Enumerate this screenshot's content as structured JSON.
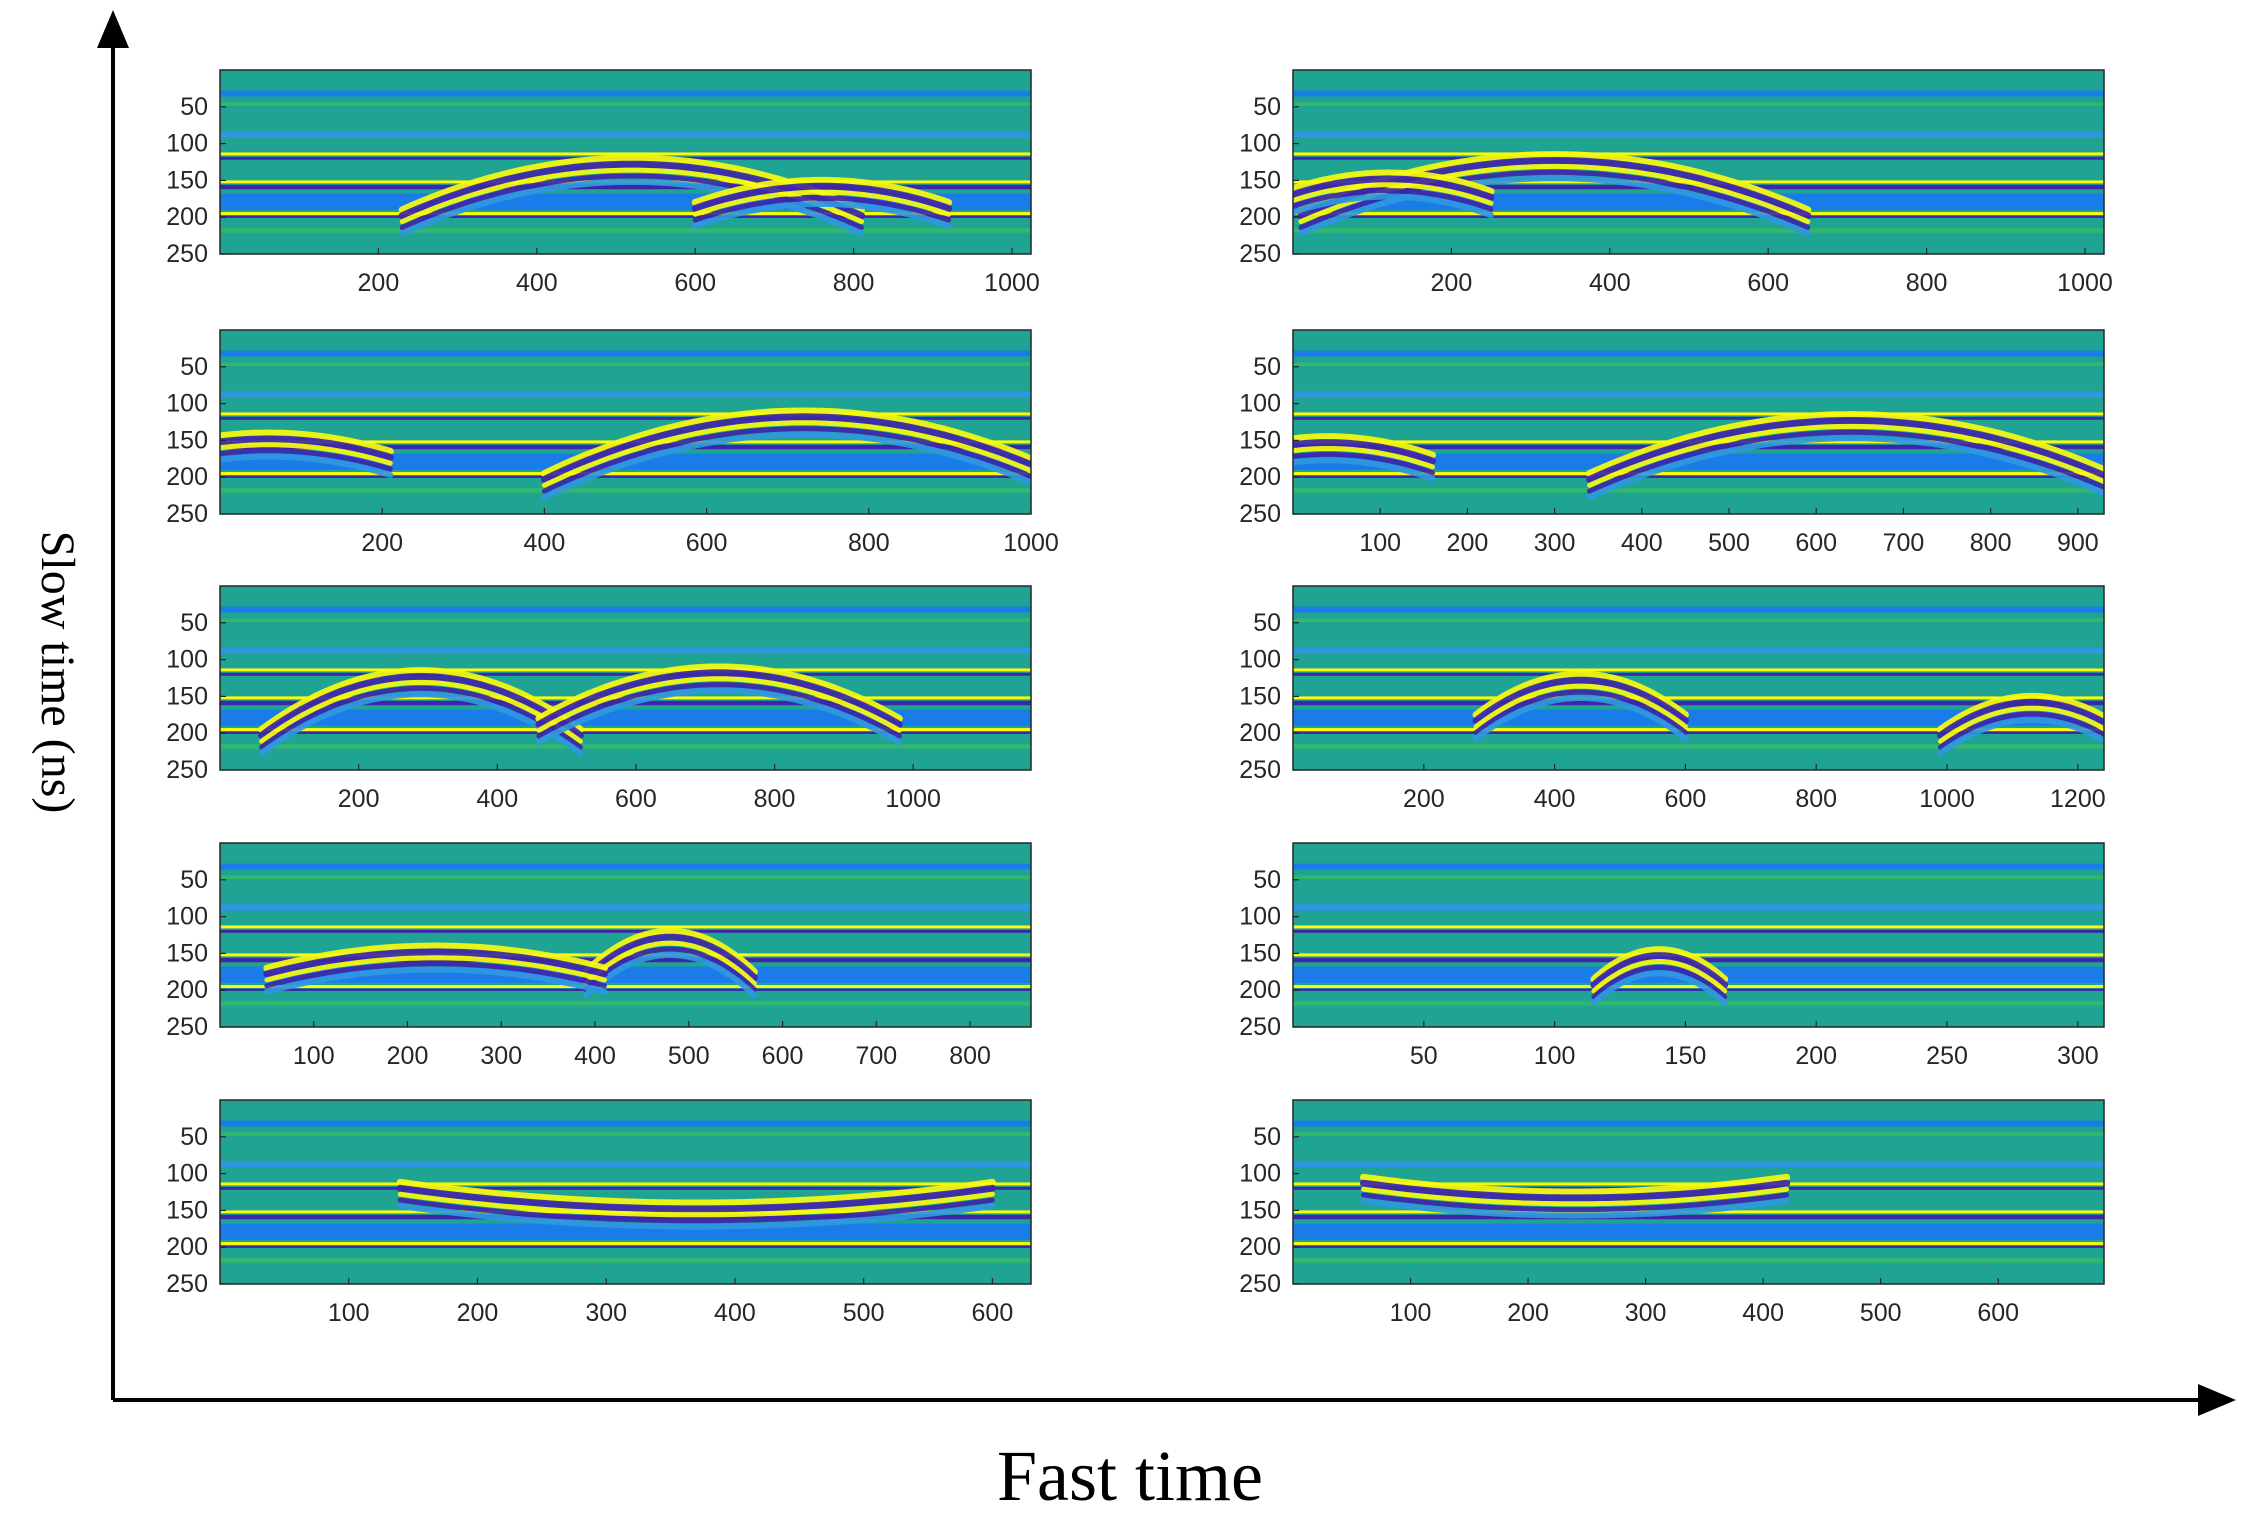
{
  "figure": {
    "xlabel": "Fast time",
    "ylabel": "Slow time (ns)"
  },
  "colors": {
    "background": "#1fa393",
    "deep_blue": "#3e26a8",
    "mid_blue": "#1a7ce8",
    "light_blue": "#2f97e0",
    "green": "#33b76c",
    "yellow": "#f9fb0e",
    "axis": "#000000",
    "frame": "#262626"
  },
  "chart_data": [
    {
      "type": "heatmap",
      "position": "row-1-left",
      "xlim": [
        0,
        1024
      ],
      "ylim": [
        250,
        0
      ],
      "xticks": [
        200,
        400,
        600,
        800,
        1000
      ],
      "xtick_labels": [
        "200",
        "400",
        "600",
        "800",
        "1000"
      ],
      "yticks": [
        50,
        100,
        150,
        200,
        250
      ],
      "ytick_labels": [
        "50",
        "100",
        "150",
        "200",
        "250"
      ],
      "hyperbolas": [
        {
          "apex_x": 520,
          "apex_y": 120,
          "half_width": 290,
          "depth": 70
        },
        {
          "apex_x": 760,
          "apex_y": 150,
          "half_width": 160,
          "depth": 30
        }
      ]
    },
    {
      "type": "heatmap",
      "position": "row-1-right",
      "xlim": [
        0,
        1024
      ],
      "ylim": [
        250,
        0
      ],
      "xticks": [
        200,
        400,
        600,
        800,
        1000
      ],
      "xtick_labels": [
        "200",
        "400",
        "600",
        "800",
        "1000"
      ],
      "yticks": [
        50,
        100,
        150,
        200,
        250
      ],
      "ytick_labels": [
        "50",
        "100",
        "150",
        "200",
        "250"
      ],
      "hyperbolas": [
        {
          "apex_x": 330,
          "apex_y": 115,
          "half_width": 320,
          "depth": 75
        },
        {
          "apex_x": 120,
          "apex_y": 140,
          "half_width": 130,
          "depth": 25
        }
      ]
    },
    {
      "type": "heatmap",
      "position": "row-2-left",
      "xlim": [
        0,
        1000
      ],
      "ylim": [
        250,
        0
      ],
      "xticks": [
        200,
        400,
        600,
        800,
        1000
      ],
      "xtick_labels": [
        "200",
        "400",
        "600",
        "800",
        "1000"
      ],
      "yticks": [
        50,
        100,
        150,
        200,
        250
      ],
      "ytick_labels": [
        "50",
        "100",
        "150",
        "200",
        "250"
      ],
      "hyperbolas": [
        {
          "apex_x": 720,
          "apex_y": 110,
          "half_width": 320,
          "depth": 85
        },
        {
          "apex_x": 60,
          "apex_y": 140,
          "half_width": 150,
          "depth": 25
        }
      ]
    },
    {
      "type": "heatmap",
      "position": "row-2-right",
      "xlim": [
        0,
        930
      ],
      "ylim": [
        250,
        0
      ],
      "xticks": [
        100,
        200,
        300,
        400,
        500,
        600,
        700,
        800,
        900
      ],
      "xtick_labels": [
        "100",
        "200",
        "300",
        "400",
        "500",
        "600",
        "700",
        "800",
        "900"
      ],
      "yticks": [
        50,
        100,
        150,
        200,
        250
      ],
      "ytick_labels": [
        "50",
        "100",
        "150",
        "200",
        "250"
      ],
      "hyperbolas": [
        {
          "apex_x": 640,
          "apex_y": 115,
          "half_width": 300,
          "depth": 80
        },
        {
          "apex_x": 40,
          "apex_y": 145,
          "half_width": 120,
          "depth": 25
        }
      ]
    },
    {
      "type": "heatmap",
      "position": "row-3-left",
      "xlim": [
        0,
        1170
      ],
      "ylim": [
        250,
        0
      ],
      "xticks": [
        200,
        400,
        600,
        800,
        1000
      ],
      "xtick_labels": [
        "200",
        "400",
        "600",
        "800",
        "1000"
      ],
      "yticks": [
        50,
        100,
        150,
        200,
        250
      ],
      "ytick_labels": [
        "50",
        "100",
        "150",
        "200",
        "250"
      ],
      "hyperbolas": [
        {
          "apex_x": 290,
          "apex_y": 115,
          "half_width": 230,
          "depth": 80
        },
        {
          "apex_x": 720,
          "apex_y": 110,
          "half_width": 260,
          "depth": 70
        }
      ]
    },
    {
      "type": "heatmap",
      "position": "row-3-right",
      "xlim": [
        0,
        1240
      ],
      "ylim": [
        250,
        0
      ],
      "xticks": [
        200,
        400,
        600,
        800,
        1000,
        1200
      ],
      "xtick_labels": [
        "200",
        "400",
        "600",
        "800",
        "1000",
        "1200"
      ],
      "yticks": [
        50,
        100,
        150,
        200,
        250
      ],
      "ytick_labels": [
        "50",
        "100",
        "150",
        "200",
        "250"
      ],
      "hyperbolas": [
        {
          "apex_x": 440,
          "apex_y": 120,
          "half_width": 160,
          "depth": 55
        },
        {
          "apex_x": 1130,
          "apex_y": 150,
          "half_width": 140,
          "depth": 45
        }
      ]
    },
    {
      "type": "heatmap",
      "position": "row-4-left",
      "xlim": [
        0,
        865
      ],
      "ylim": [
        250,
        0
      ],
      "xticks": [
        100,
        200,
        300,
        400,
        500,
        600,
        700,
        800
      ],
      "xtick_labels": [
        "100",
        "200",
        "300",
        "400",
        "500",
        "600",
        "700",
        "800"
      ],
      "yticks": [
        50,
        100,
        150,
        200,
        250
      ],
      "ytick_labels": [
        "50",
        "100",
        "150",
        "200",
        "250"
      ],
      "hyperbolas": [
        {
          "apex_x": 480,
          "apex_y": 120,
          "half_width": 90,
          "depth": 55
        },
        {
          "apex_x": 230,
          "apex_y": 140,
          "half_width": 180,
          "depth": 30
        }
      ]
    },
    {
      "type": "heatmap",
      "position": "row-4-right",
      "xlim": [
        0,
        310
      ],
      "ylim": [
        250,
        0
      ],
      "xticks": [
        50,
        100,
        150,
        200,
        250,
        300
      ],
      "xtick_labels": [
        "50",
        "100",
        "150",
        "200",
        "250",
        "300"
      ],
      "yticks": [
        50,
        100,
        150,
        200,
        250
      ],
      "ytick_labels": [
        "50",
        "100",
        "150",
        "200",
        "250"
      ],
      "hyperbolas": [
        {
          "apex_x": 140,
          "apex_y": 145,
          "half_width": 25,
          "depth": 40
        }
      ]
    },
    {
      "type": "heatmap",
      "position": "row-5-left",
      "xlim": [
        0,
        630
      ],
      "ylim": [
        250,
        0
      ],
      "xticks": [
        100,
        200,
        300,
        400,
        500,
        600
      ],
      "xtick_labels": [
        "100",
        "200",
        "300",
        "400",
        "500",
        "600"
      ],
      "yticks": [
        50,
        100,
        150,
        200,
        250
      ],
      "ytick_labels": [
        "50",
        "100",
        "150",
        "200",
        "250"
      ],
      "hyperbolas": [
        {
          "apex_x": 370,
          "apex_y": 140,
          "half_width": 230,
          "depth": -28
        }
      ]
    },
    {
      "type": "heatmap",
      "position": "row-5-right",
      "xlim": [
        0,
        690
      ],
      "ylim": [
        250,
        0
      ],
      "xticks": [
        100,
        200,
        300,
        400,
        500,
        600
      ],
      "xtick_labels": [
        "100",
        "200",
        "300",
        "400",
        "500",
        "600"
      ],
      "yticks": [
        50,
        100,
        150,
        200,
        250
      ],
      "ytick_labels": [
        "50",
        "100",
        "150",
        "200",
        "250"
      ],
      "hyperbolas": [
        {
          "apex_x": 240,
          "apex_y": 125,
          "half_width": 180,
          "depth": -20
        }
      ]
    }
  ]
}
